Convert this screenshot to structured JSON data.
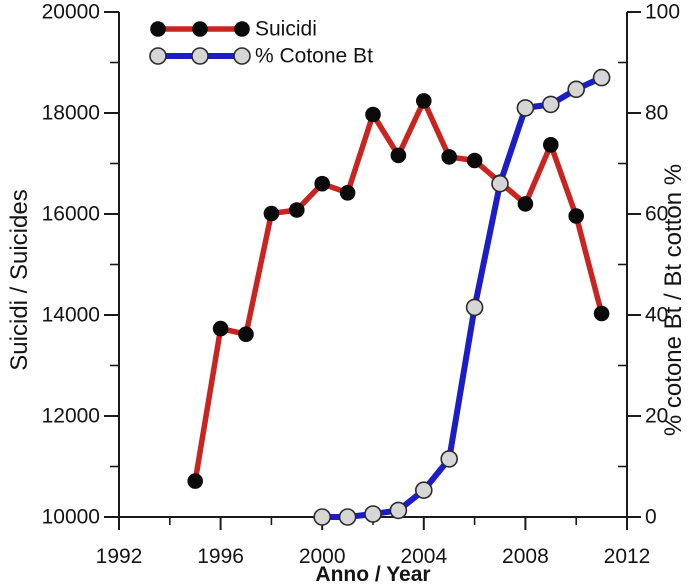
{
  "chart_data": {
    "type": "line",
    "title": "",
    "xlabel": "Anno / Year",
    "grid": false,
    "legend_position": "top-left-inside",
    "xlim": [
      1992,
      2012
    ],
    "x_major_ticks": [
      1992,
      1996,
      2000,
      2004,
      2008,
      2012
    ],
    "x_minor_ticks": [
      1994,
      1998,
      2002,
      2006,
      2010
    ],
    "axes": {
      "left": {
        "label": "Suicidi / Suicides",
        "lim": [
          10000,
          20000
        ],
        "major_ticks": [
          10000,
          12000,
          14000,
          16000,
          18000,
          20000
        ],
        "minor_ticks": [
          11000,
          13000,
          15000,
          17000,
          19000
        ]
      },
      "right": {
        "label": "% cotone Bt / Bt cotton %",
        "lim": [
          0,
          100
        ],
        "major_ticks": [
          0,
          20,
          40,
          60,
          80,
          100
        ],
        "minor_ticks": [
          10,
          30,
          50,
          70,
          90
        ]
      }
    },
    "series": [
      {
        "name": "Suicidi",
        "axis": "left",
        "line_color": "#c9241f",
        "line_width": 5.5,
        "marker_fill": "#0a0a0a",
        "marker_edge": "#0a0a0a",
        "marker_radius": 7,
        "x": [
          1995,
          1996,
          1997,
          1998,
          1999,
          2000,
          2001,
          2002,
          2003,
          2004,
          2005,
          2006,
          2007,
          2008,
          2009,
          2010,
          2011
        ],
        "y": [
          10710,
          13730,
          13620,
          16010,
          16080,
          16600,
          16420,
          17970,
          17160,
          18240,
          17130,
          17060,
          16630,
          16200,
          17370,
          15960,
          14030
        ]
      },
      {
        "name": "% Cotone Bt",
        "axis": "right",
        "line_color": "#1d1dc8",
        "line_width": 6,
        "marker_fill": "#d6d6d6",
        "marker_edge": "#2b2b2b",
        "marker_radius": 8,
        "x": [
          2000,
          2001,
          2002,
          2003,
          2004,
          2005,
          2006,
          2007,
          2008,
          2009,
          2010,
          2011
        ],
        "y": [
          0,
          0,
          0.6,
          1.3,
          5.3,
          11.5,
          41.5,
          66,
          81,
          81.7,
          84.7,
          87
        ]
      }
    ],
    "colors": {
      "axis": "#1a1a1a",
      "text": "#141414",
      "background": "#ffffff"
    }
  }
}
